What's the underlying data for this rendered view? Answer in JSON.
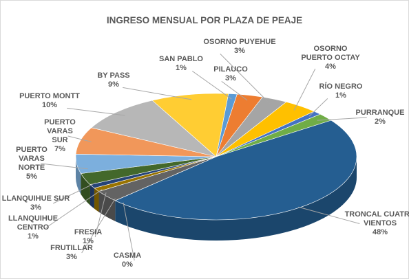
{
  "chart_data": {
    "type": "pie3d",
    "title": "INGRESO MENSUAL POR PLAZA DE PEAJE",
    "categories": [
      "SAN PABLO",
      "PILAUCO",
      "OSORNO PUYEHUE",
      "OSORNO PUERTO OCTAY",
      "RÍO NEGRO",
      "PURRANQUE",
      "TRONCAL CUATRO VIENTOS",
      "CASMA",
      "FRUTILLAR",
      "FRESIA",
      "LLANQUIHUE CENTRO",
      "LLANQUIHUE SUR",
      "PUERTO VARAS NORTE",
      "PUERTO VARAS SUR",
      "PUERTO MONTT",
      "BY PASS"
    ],
    "values": [
      1,
      3,
      3,
      4,
      1,
      2,
      48,
      0,
      3,
      1,
      1,
      3,
      5,
      7,
      10,
      9
    ],
    "value_labels": [
      "1%",
      "3%",
      "3%",
      "4%",
      "1%",
      "2%",
      "48%",
      "0%",
      "3%",
      "1%",
      "1%",
      "3%",
      "5%",
      "7%",
      "10%",
      "9%"
    ],
    "colors": [
      "#5b9bd5",
      "#ed7d31",
      "#a5a5a5",
      "#ffc000",
      "#4472c4",
      "#70ad47",
      "#255e91",
      "#9e480e",
      "#636363",
      "#997300",
      "#264478",
      "#43682b",
      "#7cafdd",
      "#f1975a",
      "#b7b7b7",
      "#ffcd33"
    ]
  }
}
